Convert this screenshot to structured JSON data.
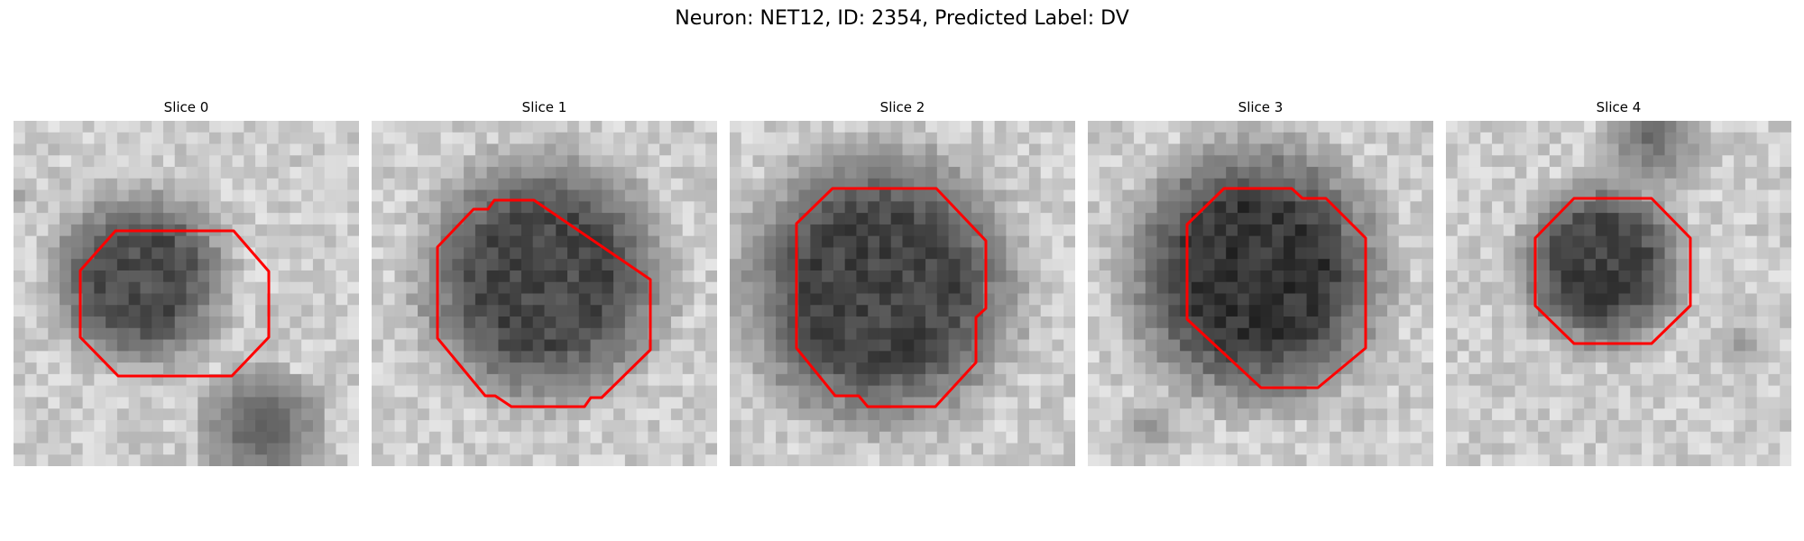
{
  "figure": {
    "suptitle": "Neuron: NET12, ID: 2354, Predicted Label: DV"
  },
  "contour_color": "#ff0000",
  "panels": [
    {
      "title": "Slice 0",
      "icon": "grayscale-microscopy-patch"
    },
    {
      "title": "Slice 1",
      "icon": "grayscale-microscopy-patch"
    },
    {
      "title": "Slice 2",
      "icon": "grayscale-microscopy-patch"
    },
    {
      "title": "Slice 3",
      "icon": "grayscale-microscopy-patch"
    },
    {
      "title": "Slice 4",
      "icon": "grayscale-microscopy-patch"
    }
  ]
}
